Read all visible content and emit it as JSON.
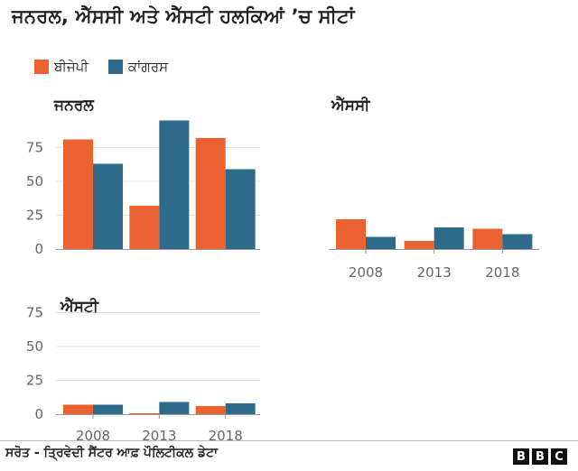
{
  "title": "ਜਨਰਲ, ਐੱਸਸੀ ਅਤੇ ਐੱਸਟੀ ਹਲਕਿਆਂ ’ਚ ਸੀਟਾਂ",
  "legend": [
    {
      "label": "ਬੀਜੇਪੀ",
      "color": "#eb6130"
    },
    {
      "label": "ਕਾਂਗਰਸ",
      "color": "#2e6b8a"
    }
  ],
  "source": "ਸਰੋਤ - ਤ੍ਰਿਵੇਦੀ ਸੈਂਟਰ ਆਫ਼ ਪੌਲਿਟੀਕਲ ਡੇਟਾ",
  "logo": [
    "B",
    "B",
    "C"
  ],
  "chart_data": [
    {
      "type": "bar",
      "title": "ਜਨਰਲ",
      "categories": [
        "2008",
        "2013",
        "2018"
      ],
      "series": [
        {
          "name": "ਬੀਜੇਪੀ",
          "values": [
            81,
            32,
            82
          ]
        },
        {
          "name": "ਕਾਂਗਰਸ",
          "values": [
            63,
            95,
            59
          ]
        }
      ],
      "ylim": [
        0,
        100
      ],
      "yticks": [
        "0",
        "25",
        "50",
        "75"
      ],
      "show_x_labels": false
    },
    {
      "type": "bar",
      "title": "ਐੱਸਸੀ",
      "categories": [
        "2008",
        "2013",
        "2018"
      ],
      "series": [
        {
          "name": "ਬੀਜੇਪੀ",
          "values": [
            22,
            6,
            15
          ]
        },
        {
          "name": "ਕਾਂਗਰਸ",
          "values": [
            9,
            16,
            11
          ]
        }
      ],
      "ylim": [
        0,
        100
      ],
      "yticks": [],
      "show_x_labels": true
    },
    {
      "type": "bar",
      "title": "ਐੱਸਟੀ",
      "categories": [
        "2008",
        "2013",
        "2018"
      ],
      "series": [
        {
          "name": "ਬੀਜੇਪੀ",
          "values": [
            7,
            0,
            6
          ]
        },
        {
          "name": "ਕਾਂਗਰਸ",
          "values": [
            7,
            9,
            8
          ]
        }
      ],
      "ylim": [
        0,
        100
      ],
      "yticks": [
        "0",
        "25",
        "50",
        "75"
      ],
      "show_x_labels": true
    }
  ]
}
